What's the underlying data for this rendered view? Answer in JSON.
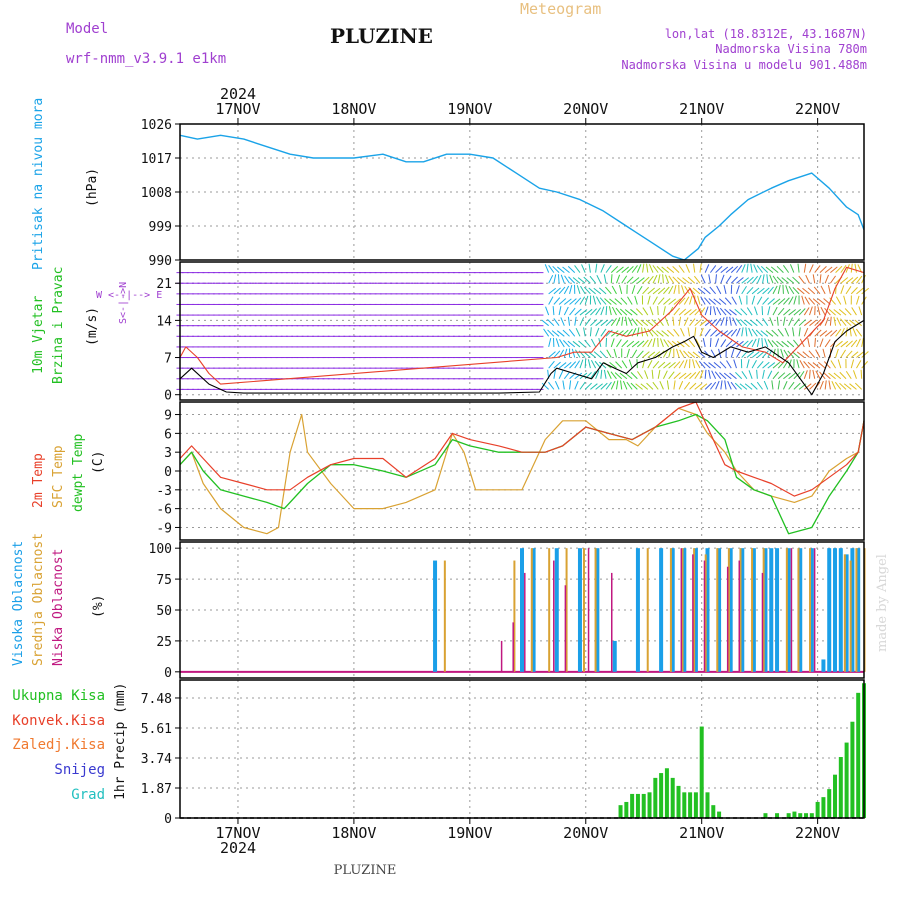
{
  "header": {
    "model_label": "Model",
    "model_name": "wrf-nmm_v3.9.1  e1km",
    "title": "PLUZINE",
    "subtitle": "Meteogram",
    "coords": "lon,lat (18.8312E, 43.1687N)",
    "elevation": "Nadmorska Visina 780m",
    "model_elevation": "Nadmorska Visina u modelu 901.488m",
    "footer_title": "PLUZINE",
    "watermark": "made by Angel"
  },
  "colors": {
    "pressure": "#1aa3e8",
    "wind_line": "#000000",
    "gust": "#e8402a",
    "temp2m": "#e8402a",
    "sfc": "#d9a233",
    "dewpt": "#22c022",
    "cloud_high": "#1a9fe8",
    "cloud_mid": "#d9a233",
    "cloud_low": "#c01880",
    "precip_total": "#22c022",
    "precip_conv": "#e8402a",
    "precip_frz": "#f07a30",
    "precip_snow": "#3a3ad0",
    "precip_grad": "#22c0c0",
    "grid": "#9a9a9a",
    "purple": "#a040d0"
  },
  "time_axis": {
    "top_year": "2024",
    "bottom_year": "2024",
    "days": [
      "17NOV",
      "18NOV",
      "19NOV",
      "20NOV",
      "21NOV",
      "22NOV"
    ],
    "day_positions": [
      0.75,
      1.75,
      2.75,
      3.75,
      4.75,
      5.75
    ],
    "range": [
      0.25,
      6.15
    ]
  },
  "panels": {
    "pressure": {
      "ylabel_left": "Pritisak na nivou mora",
      "unit": "(hPa)",
      "ticks": [
        "1026",
        "1017",
        "1008",
        "999",
        "990"
      ],
      "tick_values": [
        1026,
        1017,
        1008,
        999,
        990
      ],
      "ylim": [
        990,
        1026
      ]
    },
    "wind": {
      "ylabel_left1": "10m Vjetar",
      "ylabel_left2": "Brzina i Pravac",
      "unit": "(m/s)",
      "compass": "W <--|--> E",
      "compass_ns": "S<-|->N",
      "ticks": [
        "21",
        "14",
        "7",
        "0"
      ],
      "tick_values": [
        21,
        14,
        7,
        0
      ],
      "ylim": [
        -1,
        25
      ]
    },
    "temp": {
      "ylabel_a": "2m Temp",
      "ylabel_b": "SFC Temp",
      "ylabel_c": "dewpt Temp",
      "unit": "(C)",
      "ticks": [
        "9",
        "6",
        "3",
        "0",
        "-3",
        "-6",
        "-9"
      ],
      "tick_values": [
        9,
        6,
        3,
        0,
        -3,
        -6,
        -9
      ],
      "ylim": [
        -11,
        11
      ]
    },
    "cloud": {
      "ylabel_a": "Visoka Oblacnost",
      "ylabel_b": "Srednja Oblacnost",
      "ylabel_c": "Niska Oblacnost",
      "unit": "(%)",
      "ticks": [
        "100",
        "75",
        "50",
        "25",
        "0"
      ],
      "tick_values": [
        100,
        75,
        50,
        25,
        0
      ],
      "ylim": [
        -5,
        105
      ]
    },
    "precip": {
      "legend": [
        "Ukupna Kisa",
        "Konvek.Kisa",
        "Zaledj.Kisa",
        "Snijeg",
        "Grad"
      ],
      "ylabel": "1hr Precip (mm)",
      "ticks": [
        "7.48",
        "5.61",
        "3.74",
        "1.87",
        "0"
      ],
      "tick_values": [
        7.48,
        5.61,
        3.74,
        1.87,
        0
      ],
      "ylim": [
        0,
        8.6
      ]
    }
  },
  "chart_data": {
    "type": "line",
    "pressure": {
      "x": [
        0.25,
        0.4,
        0.6,
        0.8,
        1.0,
        1.2,
        1.4,
        1.55,
        1.75,
        2.0,
        2.2,
        2.35,
        2.55,
        2.75,
        2.95,
        3.15,
        3.35,
        3.5,
        3.7,
        3.9,
        4.1,
        4.3,
        4.5,
        4.6,
        4.72,
        4.78,
        4.9,
        5.0,
        5.15,
        5.35,
        5.5,
        5.7,
        5.85,
        6.0,
        6.1,
        6.15
      ],
      "y": [
        1023,
        1022,
        1023,
        1022,
        1020,
        1018,
        1017,
        1017,
        1017,
        1018,
        1016,
        1016,
        1018,
        1018,
        1017,
        1013,
        1009,
        1008,
        1006,
        1003,
        999,
        995,
        991,
        990,
        993,
        996,
        999,
        1002,
        1006,
        1009,
        1011,
        1013,
        1009,
        1004,
        1002,
        998
      ]
    },
    "wind_speed": {
      "x": [
        0.25,
        0.35,
        0.5,
        0.65,
        0.8,
        1.0,
        1.5,
        2.0,
        2.5,
        3.0,
        3.35,
        3.45,
        3.5,
        3.65,
        3.8,
        3.9,
        4.0,
        4.1,
        4.2,
        4.35,
        4.5,
        4.6,
        4.68,
        4.75,
        4.85,
        5.0,
        5.15,
        5.3,
        5.5,
        5.7,
        5.8,
        5.9,
        6.0,
        6.15
      ],
      "y": [
        3,
        5,
        2,
        0.5,
        0.3,
        0.3,
        0.3,
        0.3,
        0.3,
        0.3,
        0.5,
        4,
        5,
        4,
        3,
        6,
        5,
        4,
        6,
        7,
        9,
        10,
        11,
        8,
        7,
        9,
        8,
        9,
        6,
        0,
        4,
        10,
        12,
        14
      ]
    },
    "wind_gust": {
      "x": [
        0.25,
        0.3,
        0.4,
        0.5,
        0.6,
        3.5,
        3.65,
        3.8,
        3.95,
        4.1,
        4.3,
        4.5,
        4.65,
        4.75,
        4.9,
        5.1,
        5.3,
        5.45,
        5.8,
        5.9,
        6.0,
        6.15
      ],
      "y": [
        7,
        9,
        7,
        4,
        2,
        7,
        8,
        8,
        12,
        11,
        12,
        16,
        20,
        15,
        12,
        9,
        8,
        6,
        14,
        20,
        24,
        23
      ]
    },
    "temp_2m": {
      "x": [
        0.25,
        0.35,
        0.45,
        0.6,
        0.8,
        1.0,
        1.2,
        1.35,
        1.55,
        1.75,
        2.0,
        2.2,
        2.45,
        2.6,
        2.75,
        3.0,
        3.2,
        3.4,
        3.55,
        3.75,
        3.95,
        4.15,
        4.35,
        4.55,
        4.7,
        4.85,
        4.95,
        5.05,
        5.2,
        5.35,
        5.55,
        5.7,
        5.85,
        6.0,
        6.1,
        6.15
      ],
      "y": [
        2,
        4,
        2,
        -1,
        -2,
        -3,
        -3,
        -1,
        1,
        2,
        2,
        -1,
        2,
        6,
        5,
        4,
        3,
        3,
        4,
        7,
        6,
        5,
        7,
        10,
        11,
        5,
        1,
        0,
        -1,
        -2,
        -4,
        -3,
        -1,
        1,
        3,
        8
      ]
    },
    "temp_sfc": {
      "x": [
        0.25,
        0.35,
        0.45,
        0.6,
        0.8,
        1.0,
        1.1,
        1.2,
        1.3,
        1.35,
        1.55,
        1.75,
        2.0,
        2.2,
        2.45,
        2.6,
        2.7,
        2.8,
        2.9,
        3.0,
        3.2,
        3.4,
        3.55,
        3.75,
        3.95,
        4.1,
        4.2,
        4.35,
        4.55,
        4.7,
        4.8,
        4.95,
        5.05,
        5.2,
        5.35,
        5.55,
        5.7,
        5.85,
        6.0,
        6.1,
        6.15
      ],
      "y": [
        1,
        3,
        -2,
        -6,
        -9,
        -10,
        -9,
        3,
        9,
        3,
        -2,
        -6,
        -6,
        -5,
        -3,
        6,
        3,
        -3,
        -3,
        -3,
        -3,
        5,
        8,
        8,
        5,
        5,
        4,
        7,
        10,
        9,
        6,
        3,
        0,
        -3,
        -4,
        -5,
        -4,
        0,
        2,
        3,
        8
      ]
    },
    "temp_dewpt": {
      "x": [
        0.25,
        0.35,
        0.45,
        0.6,
        0.8,
        1.0,
        1.15,
        1.35,
        1.55,
        1.75,
        2.0,
        2.2,
        2.45,
        2.6,
        2.75,
        3.0,
        3.2,
        3.4,
        3.55,
        3.75,
        3.95,
        4.15,
        4.35,
        4.55,
        4.7,
        4.8,
        4.95,
        5.05,
        5.2,
        5.35,
        5.5,
        5.7,
        5.85,
        6.0,
        6.1,
        6.15
      ],
      "y": [
        1,
        3,
        0,
        -3,
        -4,
        -5,
        -6,
        -2,
        1,
        1,
        0,
        -1,
        1,
        5,
        4,
        3,
        3,
        3,
        4,
        7,
        6,
        5,
        7,
        8,
        9,
        8,
        5,
        -1,
        -3,
        -4,
        -10,
        -9,
        -4,
        0,
        3,
        8
      ]
    },
    "cloud_high": {
      "x": [
        2.45,
        3.2,
        3.3,
        3.5,
        3.7,
        3.85,
        4.0,
        4.2,
        4.4,
        4.5,
        4.6,
        4.7,
        4.8,
        4.9,
        5.0,
        5.1,
        5.2,
        5.3,
        5.35,
        5.4,
        5.5,
        5.6,
        5.7,
        5.8,
        5.85,
        5.9,
        5.95,
        6.0,
        6.05,
        6.1
      ],
      "y": [
        90,
        100,
        100,
        100,
        100,
        100,
        25,
        100,
        100,
        100,
        100,
        100,
        100,
        100,
        100,
        100,
        100,
        100,
        100,
        100,
        100,
        100,
        100,
        10,
        100,
        100,
        100,
        95,
        100,
        100
      ]
    },
    "cloud_mid": {
      "x": [
        2.5,
        3.1,
        3.25,
        3.4,
        3.55,
        3.7,
        3.8,
        4.25,
        4.45,
        4.55,
        4.65,
        4.75,
        4.85,
        4.95,
        5.05,
        5.15,
        5.25,
        5.45,
        5.55,
        5.65,
        5.95,
        6.0,
        6.05,
        6.12
      ],
      "y": [
        90,
        90,
        100,
        100,
        100,
        100,
        100,
        100,
        100,
        100,
        100,
        95,
        100,
        100,
        100,
        100,
        100,
        100,
        100,
        100,
        95,
        90,
        100,
        100
      ],
      "x_extra": [
        4.55
      ],
      "y_extra": [
        0
      ]
    },
    "cloud_low": {
      "x": [
        3.05,
        3.15,
        3.25,
        3.5,
        3.6,
        3.8,
        4.0,
        4.6,
        4.7,
        4.8,
        5.0,
        5.1,
        5.3,
        5.55,
        5.75
      ],
      "y": [
        25,
        40,
        80,
        90,
        70,
        100,
        80,
        100,
        95,
        90,
        85,
        90,
        80,
        100,
        100
      ]
    },
    "precip_total": {
      "x": [
        4.05,
        4.1,
        4.15,
        4.2,
        4.25,
        4.3,
        4.35,
        4.4,
        4.45,
        4.5,
        4.55,
        4.6,
        4.65,
        4.7,
        4.75,
        4.8,
        4.85,
        4.9,
        5.3,
        5.4,
        5.5,
        5.55,
        5.6,
        5.65,
        5.7,
        5.75,
        5.8,
        5.85,
        5.9,
        5.95,
        6.0,
        6.05,
        6.1,
        6.15
      ],
      "y": [
        0.8,
        1.0,
        1.5,
        1.5,
        1.5,
        1.6,
        2.5,
        2.8,
        3.1,
        2.5,
        2.0,
        1.6,
        1.6,
        1.6,
        5.7,
        1.6,
        0.8,
        0.4,
        0.3,
        0.3,
        0.3,
        0.4,
        0.3,
        0.3,
        0.3,
        1.0,
        1.3,
        1.8,
        2.7,
        3.8,
        4.7,
        6.0,
        7.8,
        8.4
      ]
    }
  }
}
